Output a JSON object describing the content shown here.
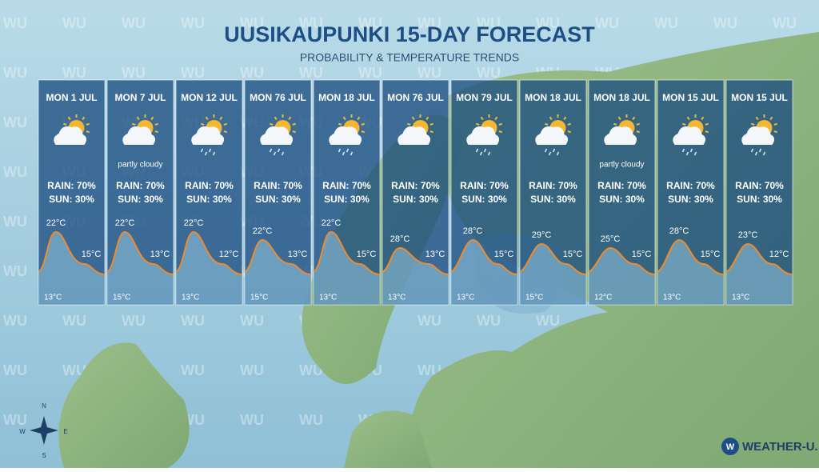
{
  "header": {
    "title": "UUSIKAUPUNKI 15-DAY FORECAST",
    "subtitle": "PROBABILITY & TEMPERATURE TRENDS"
  },
  "watermark": "WU",
  "logo": "WEATHER-U.",
  "compass": {
    "n": "N",
    "e": "E",
    "s": "S",
    "w": "W"
  },
  "panels": [
    {
      "date": "MON 1 JUL",
      "rain_icon": false,
      "rain": "RAIN: 70%",
      "sun": "SUN: 30%",
      "high": "22°C",
      "late": "15°C",
      "low": "13°C"
    },
    {
      "date": "MON 7 JUL",
      "rain_icon": false,
      "condition": "partly cloudy",
      "rain": "RAIN: 70%",
      "sun": "SUN: 30%",
      "high": "22°C",
      "late": "13°C",
      "low": "15°C"
    },
    {
      "date": "MON 12 JUL",
      "rain_icon": true,
      "rain": "RAIN: 70%",
      "sun": "SUN: 30%",
      "high": "22°C",
      "late": "12°C",
      "low": "13°C"
    },
    {
      "date": "MON 76 JUL",
      "rain_icon": true,
      "rain": "RAIN: 70%",
      "sun": "SUN: 30%",
      "high": "22°C",
      "late": "13°C",
      "low": "15°C"
    },
    {
      "date": "MON 18 JUL",
      "rain_icon": true,
      "rain": "RAIN: 70%",
      "sun": "SUN: 30%",
      "high": "22°C",
      "late": "15°C",
      "low": "13°C"
    },
    {
      "date": "MON 76 JUL",
      "rain_icon": false,
      "rain": "RAIN: 70%",
      "sun": "SUN: 30%",
      "high": "28°C",
      "late": "13°C",
      "low": "13°C"
    },
    {
      "date": "MON 79 JUL",
      "rain_icon": true,
      "rain": "RAIN: 70%",
      "sun": "SUN: 30%",
      "high": "28°C",
      "late": "15°C",
      "low": "13°C"
    },
    {
      "date": "MON 18 JUL",
      "rain_icon": true,
      "rain": "RAIN: 70%",
      "sun": "SUN: 30%",
      "high": "29°C",
      "late": "15°C",
      "low": "15°C"
    },
    {
      "date": "MON 18 JUL",
      "rain_icon": false,
      "condition": "partly cloudy",
      "rain": "RAIN: 70%",
      "sun": "SUN: 30%",
      "high": "25°C",
      "late": "15°C",
      "low": "12°C"
    },
    {
      "date": "MON 15 JUL",
      "rain_icon": true,
      "rain": "RAIN: 70%",
      "sun": "SUN: 30%",
      "high": "28°C",
      "late": "15°C",
      "low": "13°C"
    },
    {
      "date": "MON 15 JUL",
      "rain_icon": true,
      "rain": "RAIN: 70%",
      "sun": "SUN: 30%",
      "high": "23°C",
      "late": "12°C",
      "low": "13°C"
    }
  ]
}
